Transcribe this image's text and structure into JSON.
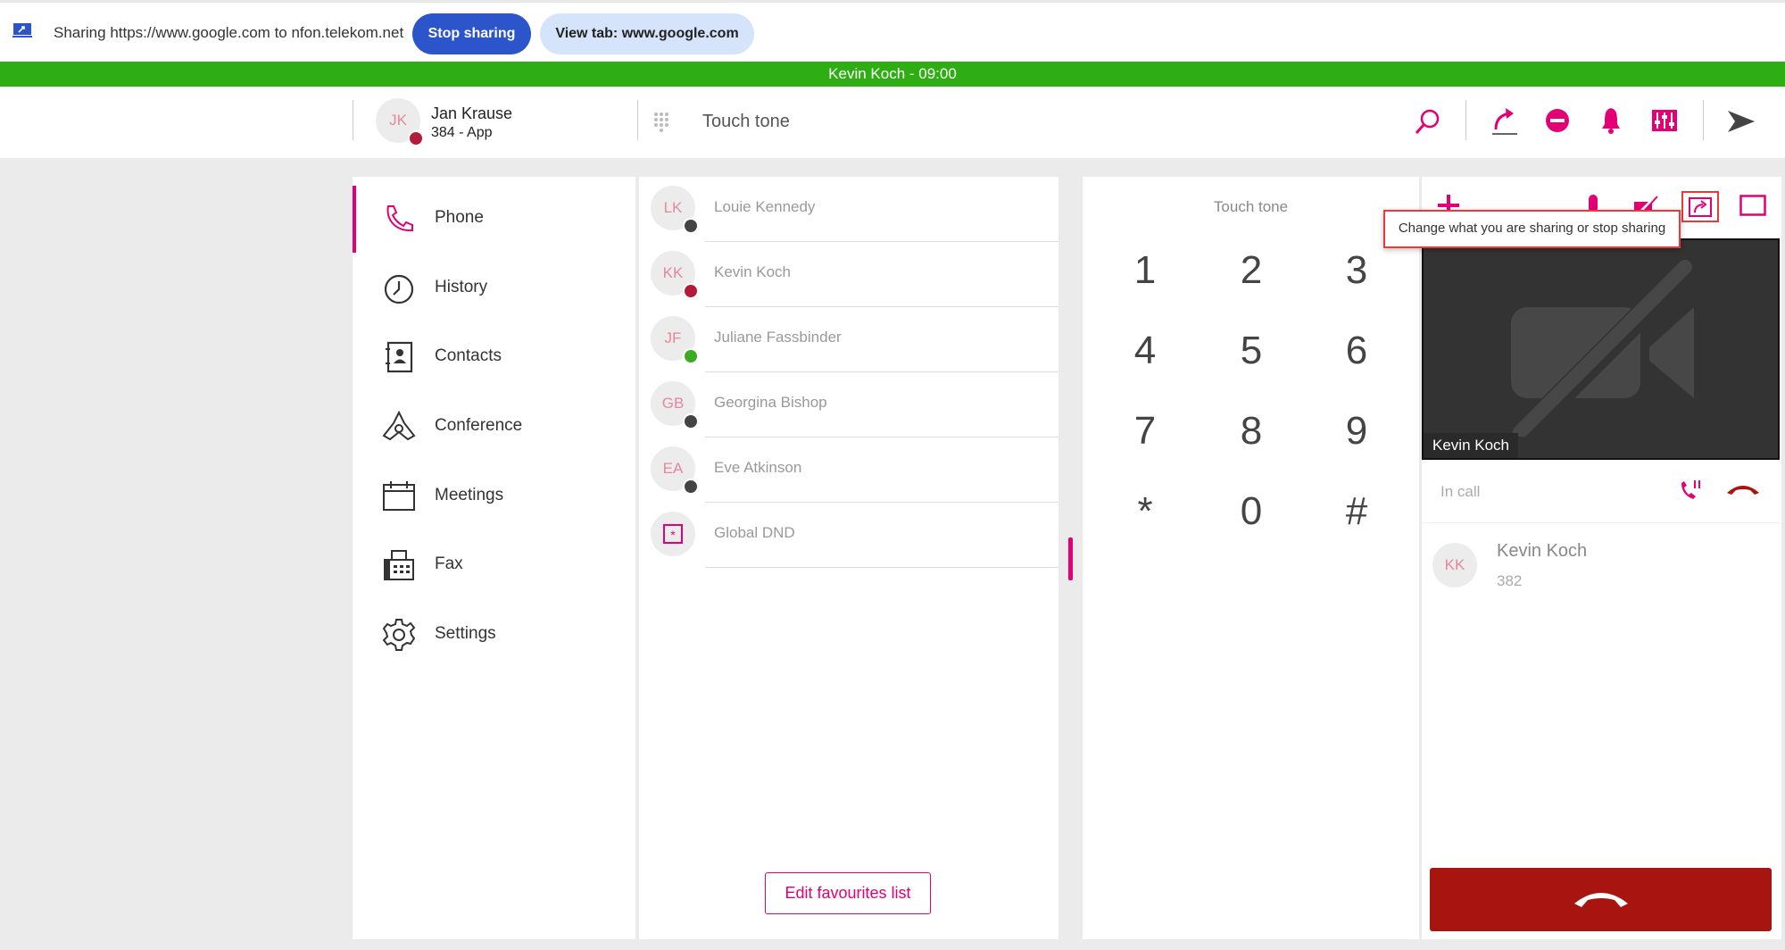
{
  "share_bar": {
    "icon": "screen-share-icon",
    "text": "Sharing https://www.google.com to nfon.telekom.net",
    "stop_label": "Stop sharing",
    "view_label": "View tab: www.google.com"
  },
  "call_bar": {
    "text": "Kevin Koch - 09:00",
    "color": "#2fae14"
  },
  "header": {
    "user": {
      "initials": "JK",
      "name": "Jan Krause",
      "extension": "384 - App",
      "status": "busy"
    },
    "touch_tone": "Touch tone",
    "icons": [
      "search-icon",
      "call-forward-icon",
      "do-not-disturb-icon",
      "bell-icon",
      "mixer-icon",
      "send-icon"
    ]
  },
  "sidebar": {
    "items": [
      {
        "label": "Phone",
        "icon": "phone-icon",
        "active": true
      },
      {
        "label": "History",
        "icon": "history-icon"
      },
      {
        "label": "Contacts",
        "icon": "contacts-icon"
      },
      {
        "label": "Conference",
        "icon": "conference-icon"
      },
      {
        "label": "Meetings",
        "icon": "calendar-icon"
      },
      {
        "label": "Fax",
        "icon": "fax-icon"
      },
      {
        "label": "Settings",
        "icon": "gear-icon"
      }
    ]
  },
  "favourites": {
    "items": [
      {
        "initials": "LK",
        "name": "Louie Kennedy",
        "status": "offline"
      },
      {
        "initials": "KK",
        "name": "Kevin Koch",
        "status": "busy"
      },
      {
        "initials": "JF",
        "name": "Juliane Fassbinder",
        "status": "available"
      },
      {
        "initials": "GB",
        "name": "Georgina Bishop",
        "status": "offline"
      },
      {
        "initials": "EA",
        "name": "Eve Atkinson",
        "status": "offline"
      },
      {
        "initials": "",
        "name": "Global DND",
        "status": ""
      }
    ],
    "edit_label": "Edit favourites list"
  },
  "dialpad": {
    "title": "Touch tone",
    "keys": [
      "1",
      "2",
      "3",
      "4",
      "5",
      "6",
      "7",
      "8",
      "9",
      "*",
      "0",
      "#"
    ]
  },
  "call_panel": {
    "tooltip": "Change what you are sharing or stop sharing",
    "video_name": "Kevin Koch",
    "state": "In call",
    "contact": {
      "initials": "KK",
      "name": "Kevin Koch",
      "number": "382"
    },
    "hangup_color": "#a8140f",
    "accent": "#e20074"
  }
}
